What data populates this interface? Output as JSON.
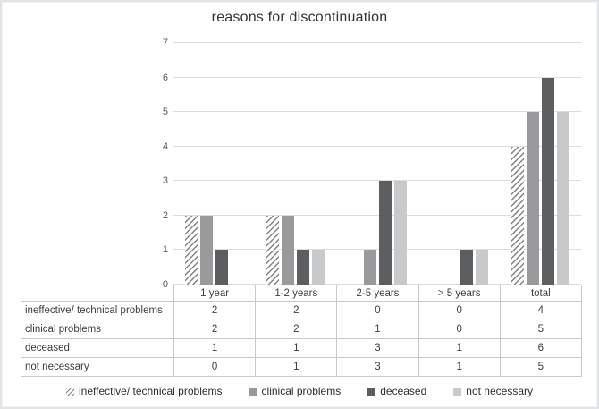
{
  "title": "reasons for discontinuation",
  "chart_data": {
    "type": "bar",
    "title": "reasons for discontinuation",
    "categories": [
      "1 year",
      "1-2 years",
      "2-5 years",
      "> 5 years",
      "total"
    ],
    "series": [
      {
        "name": "ineffective/ technical problems",
        "pattern": "diagonal-hatch",
        "color": "#838383",
        "values": [
          2,
          2,
          0,
          0,
          4
        ]
      },
      {
        "name": "clinical problems",
        "pattern": "solid",
        "color": "#9a9a9c",
        "values": [
          2,
          2,
          1,
          0,
          5
        ]
      },
      {
        "name": "deceased",
        "pattern": "solid",
        "color": "#5d5e60",
        "values": [
          1,
          1,
          3,
          1,
          6
        ]
      },
      {
        "name": "not necessary",
        "pattern": "solid",
        "color": "#c8c9cb",
        "values": [
          0,
          1,
          3,
          1,
          5
        ]
      }
    ],
    "ylim": [
      0,
      7
    ],
    "ytick_step": 1,
    "yticks": [
      0,
      1,
      2,
      3,
      4,
      5,
      6,
      7
    ],
    "grid": true,
    "legend_position": "bottom",
    "has_data_table": true,
    "colors": {
      "gridline": "#dcdddd",
      "table_border": "#c7c9cb",
      "axis_text": "#595959",
      "title_text": "#333333"
    }
  }
}
